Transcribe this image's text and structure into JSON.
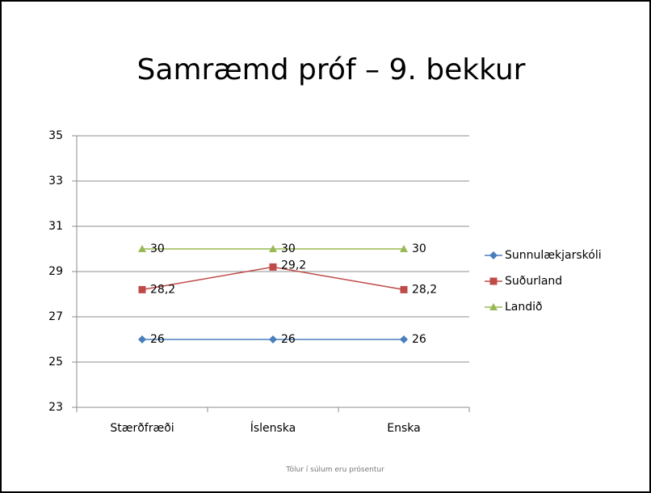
{
  "chart_data": {
    "type": "line",
    "title": "Samræmd próf – 9. bekkur",
    "categories": [
      "Stærðfræði",
      "Íslenska",
      "Enska"
    ],
    "series": [
      {
        "name": "Sunnulækjarskóli",
        "color": "#4a7ebb",
        "marker": "diamond",
        "values": [
          26,
          26,
          26
        ]
      },
      {
        "name": "Suðurland",
        "color": "#be4b48",
        "marker": "square",
        "values": [
          28.2,
          29.2,
          28.2
        ],
        "value_labels": [
          "28,2",
          "29,2",
          "28,2"
        ]
      },
      {
        "name": "Landið",
        "color": "#98b954",
        "marker": "triangle",
        "values": [
          30,
          30,
          30
        ]
      }
    ],
    "ylim": [
      23,
      35
    ],
    "yticks": [
      23,
      25,
      27,
      29,
      31,
      33,
      35
    ],
    "grid": true,
    "legend": "right",
    "note": "Tölur í súlum eru prósentur"
  }
}
